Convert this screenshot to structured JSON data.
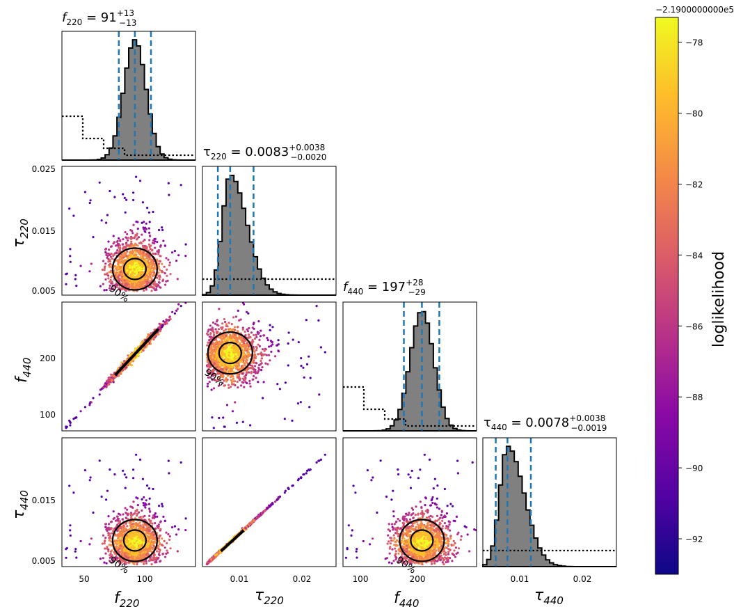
{
  "chart_data": {
    "type": "scatter",
    "plot_kind": "corner plot",
    "parameters": [
      {
        "key": "f220",
        "symbol": "f",
        "sub": "220",
        "median": 91,
        "plus": "+13",
        "minus": "−13",
        "range": [
          32,
          140
        ],
        "ticks": [
          50,
          100
        ]
      },
      {
        "key": "tau220",
        "symbol": "τ",
        "sub": "220",
        "median": "0.0083",
        "plus": "+0.0038",
        "minus": "−0.0020",
        "range": [
          0.0038,
          0.0255
        ],
        "ticks": [
          "0.005",
          "0.015",
          "0.025"
        ],
        "xticks": [
          "0.01",
          "0.02"
        ]
      },
      {
        "key": "f440",
        "symbol": "f",
        "sub": "440",
        "median": 197,
        "plus": "+28",
        "minus": "−29",
        "range": [
          70,
          285
        ],
        "ticks": [
          "100",
          "200"
        ],
        "xticks": [
          "100",
          "200"
        ]
      },
      {
        "key": "tau440",
        "symbol": "τ",
        "sub": "440",
        "median": "0.0078",
        "plus": "+0.0038",
        "minus": "−0.0019",
        "range": [
          0.0038,
          0.0255
        ],
        "ticks": [
          "0.005",
          "0.015"
        ],
        "xticks": [
          "0.01",
          "0.02"
        ]
      }
    ],
    "histogram_quantile_lines": {
      "f220": [
        78,
        91,
        104
      ],
      "tau220": [
        0.0063,
        0.0083,
        0.0121
      ],
      "f440": [
        168,
        197,
        225
      ],
      "tau440": [
        0.0059,
        0.0078,
        0.0116
      ]
    },
    "contour_label": "90%",
    "colorbar": {
      "label": "loglikelihood",
      "offset_text": "−2.1900000000e5",
      "ticks": [
        "−78",
        "−80",
        "−82",
        "−84",
        "−86",
        "−88",
        "−90",
        "−92"
      ],
      "range": [
        -93,
        -77.3
      ],
      "colormap": [
        "#0d0887",
        "#5302a3",
        "#8b0aa5",
        "#b83289",
        "#db5c68",
        "#f48849",
        "#febd2a",
        "#f0f921"
      ]
    },
    "colors": {
      "hist_fill": "#808080",
      "quantile_line": "#1f77b4",
      "contour": "#000000"
    }
  }
}
